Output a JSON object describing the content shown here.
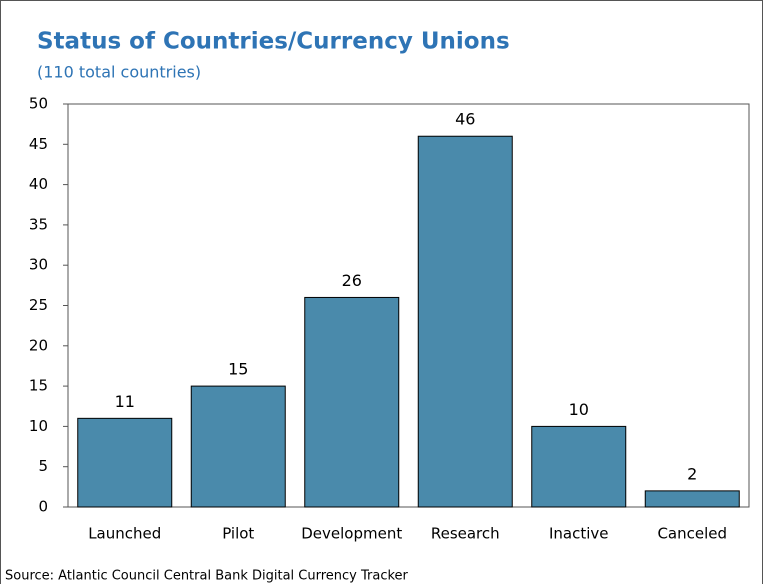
{
  "chart_data": {
    "type": "bar",
    "title": "Status of Countries/Currency Unions",
    "subtitle": "(110 total countries)",
    "source": "Source: Atlantic Council Central Bank Digital Currency Tracker",
    "categories": [
      "Launched",
      "Pilot",
      "Development",
      "Research",
      "Inactive",
      "Canceled"
    ],
    "values": [
      11,
      15,
      26,
      46,
      10,
      2
    ],
    "color": "#4a8aab",
    "ylim": [
      0,
      50
    ],
    "yticks": [
      0,
      5,
      10,
      15,
      20,
      25,
      30,
      35,
      40,
      45,
      50
    ],
    "grid": false
  }
}
